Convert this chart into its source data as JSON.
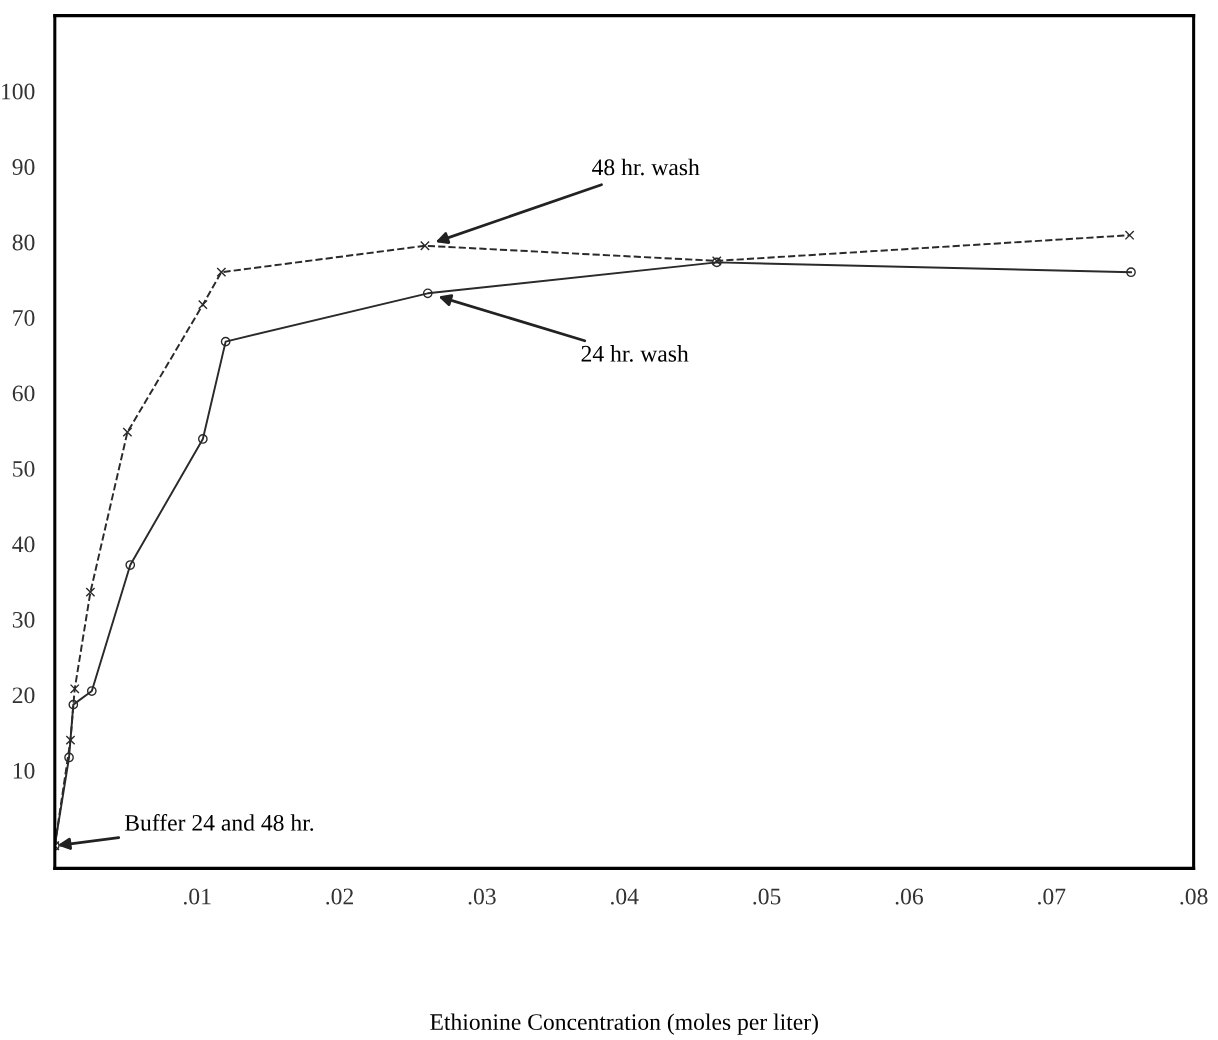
{
  "chart_data": {
    "type": "line",
    "xlabel": "Ethionine Concentration (moles per liter)",
    "xlim": [
      0,
      0.08
    ],
    "ylim": [
      -3,
      110
    ],
    "xticks": [
      {
        "value": 0.01,
        "label": ".01"
      },
      {
        "value": 0.02,
        "label": ".02"
      },
      {
        "value": 0.03,
        "label": ".03"
      },
      {
        "value": 0.04,
        "label": ".04"
      },
      {
        "value": 0.05,
        "label": ".05"
      },
      {
        "value": 0.06,
        "label": ".06"
      },
      {
        "value": 0.07,
        "label": ".07"
      },
      {
        "value": 0.08,
        "label": ".08"
      }
    ],
    "yticks": [
      10,
      20,
      30,
      40,
      50,
      60,
      70,
      80,
      90,
      100
    ],
    "grid": false,
    "legend": false,
    "series": [
      {
        "name": "24 hr. wash",
        "color": "#2a2a2a",
        "marker": "circle",
        "line_style": "solid",
        "x": [
          0,
          0.001,
          0.0013,
          0.0026,
          0.0053,
          0.0104,
          0.012,
          0.0262,
          0.0465,
          0.0756
        ],
        "values": [
          0,
          11.7,
          18.7,
          20.5,
          37.2,
          53.9,
          66.8,
          73.2,
          77.3,
          76
        ]
      },
      {
        "name": "48 hr. wash",
        "color": "#2a2a2a",
        "marker": "cross",
        "line_style": "dashed",
        "x": [
          0,
          0.0011,
          0.0014,
          0.0025,
          0.0051,
          0.0104,
          0.0117,
          0.026,
          0.0465,
          0.0755
        ],
        "values": [
          0,
          14,
          20.8,
          33.6,
          54.8,
          71.7,
          76,
          79.5,
          77.5,
          80.9
        ]
      }
    ],
    "annotations": [
      {
        "text": "Buffer 24 and 48 hr.",
        "x": 0,
        "y": 0
      }
    ]
  }
}
